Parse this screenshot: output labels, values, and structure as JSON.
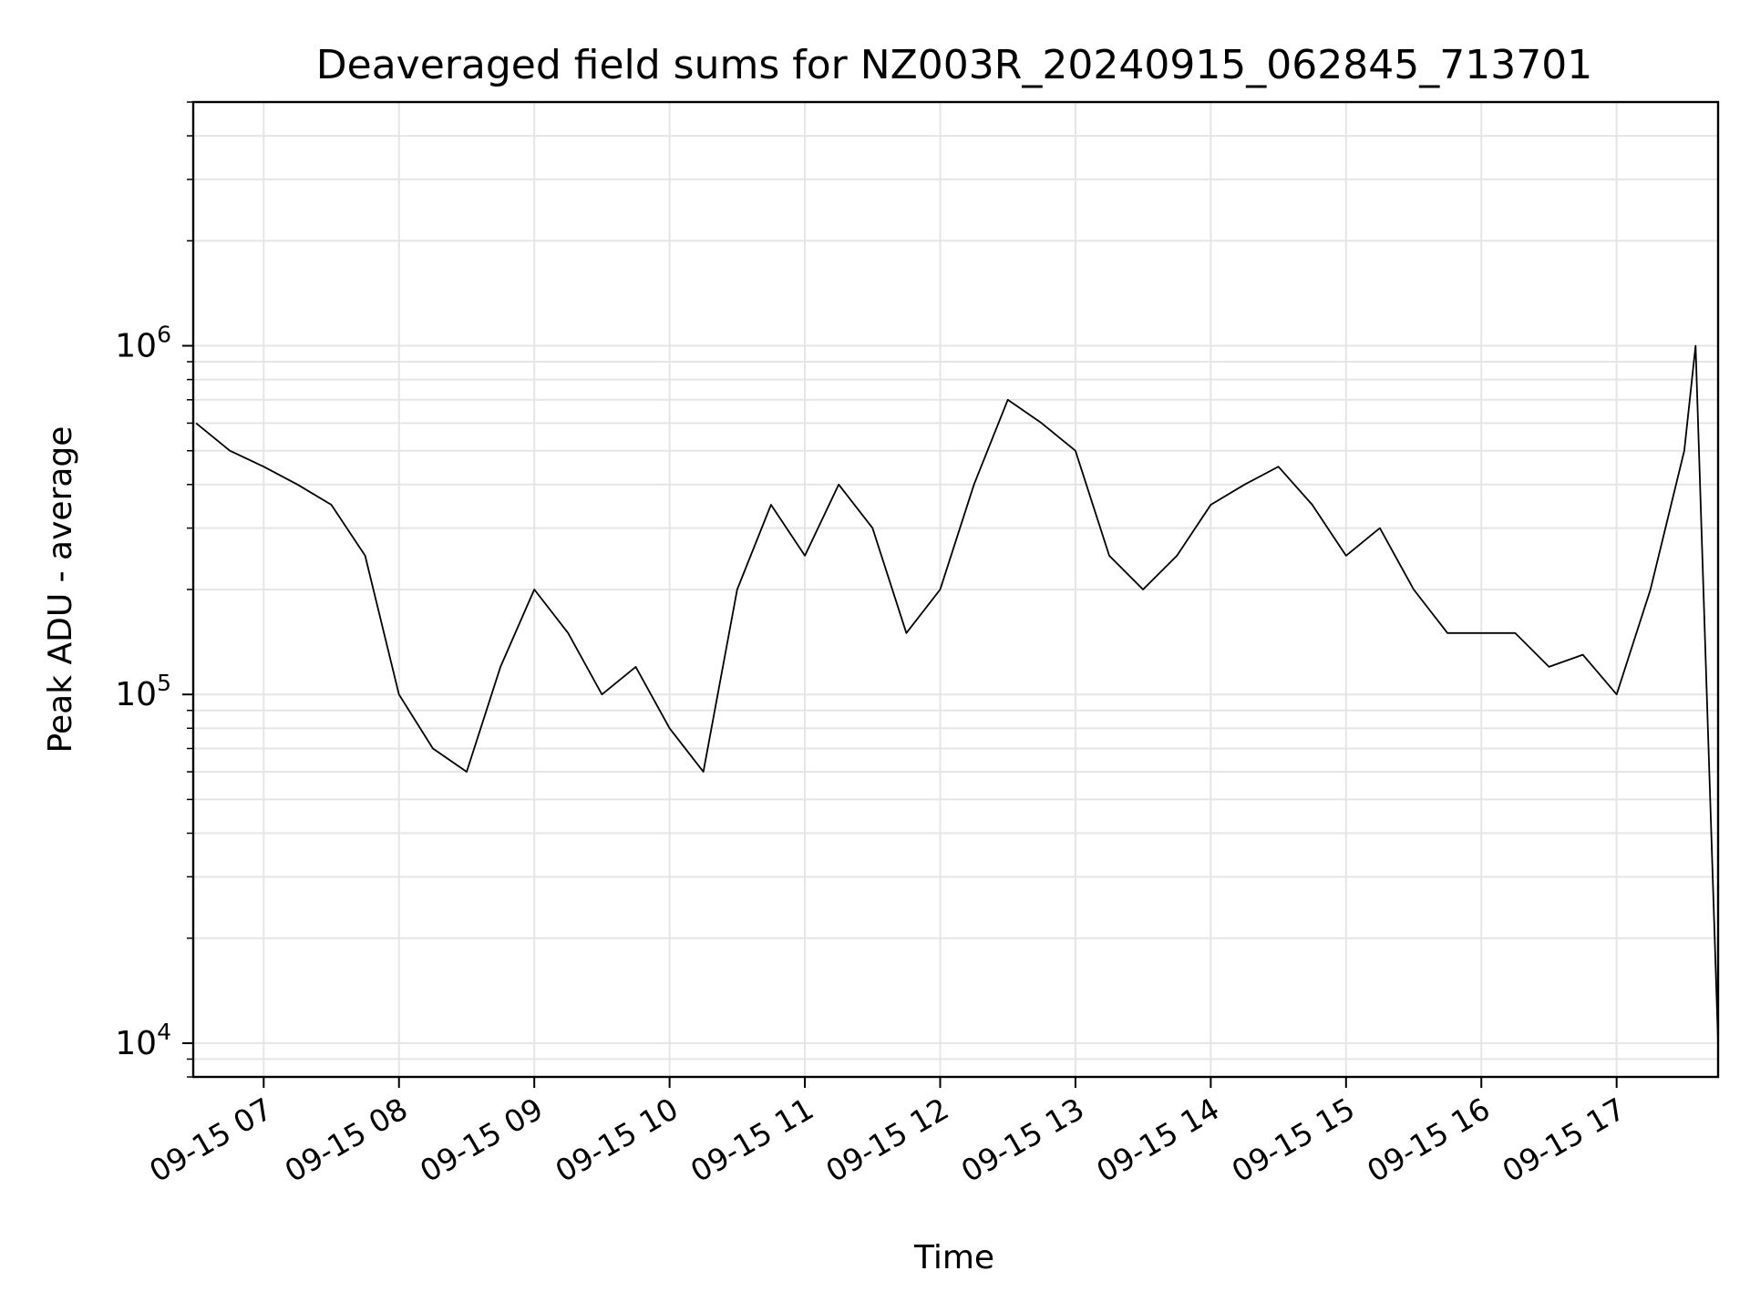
{
  "chart_data": {
    "type": "line",
    "title": "Deaveraged field sums for NZ003R_20240915_062845_713701",
    "xlabel": "Time",
    "ylabel": "Peak ADU - average",
    "yscale": "log",
    "xlim": [
      "2024-09-15T06:28:45",
      "2024-09-15T17:45:00"
    ],
    "ylim": [
      8000,
      5000000
    ],
    "grid": true,
    "line_color": "#000000",
    "grid_color": "#e5e5e5",
    "x_ticks": [
      {
        "value": "2024-09-15T07:00:00",
        "label": "09-15 07"
      },
      {
        "value": "2024-09-15T08:00:00",
        "label": "09-15 08"
      },
      {
        "value": "2024-09-15T09:00:00",
        "label": "09-15 09"
      },
      {
        "value": "2024-09-15T10:00:00",
        "label": "09-15 10"
      },
      {
        "value": "2024-09-15T11:00:00",
        "label": "09-15 11"
      },
      {
        "value": "2024-09-15T12:00:00",
        "label": "09-15 12"
      },
      {
        "value": "2024-09-15T13:00:00",
        "label": "09-15 13"
      },
      {
        "value": "2024-09-15T14:00:00",
        "label": "09-15 14"
      },
      {
        "value": "2024-09-15T15:00:00",
        "label": "09-15 15"
      },
      {
        "value": "2024-09-15T16:00:00",
        "label": "09-15 16"
      },
      {
        "value": "2024-09-15T17:00:00",
        "label": "09-15 17"
      }
    ],
    "y_ticks": [
      {
        "value": 10000,
        "base": "10",
        "exp": "4"
      },
      {
        "value": 100000,
        "base": "10",
        "exp": "5"
      },
      {
        "value": 1000000,
        "base": "10",
        "exp": "6"
      }
    ],
    "series": [
      {
        "x": [
          "2024-09-15T06:30:00",
          "2024-09-15T06:45:00",
          "2024-09-15T07:00:00",
          "2024-09-15T07:15:00",
          "2024-09-15T07:30:00",
          "2024-09-15T07:45:00",
          "2024-09-15T08:00:00",
          "2024-09-15T08:15:00",
          "2024-09-15T08:30:00",
          "2024-09-15T08:45:00",
          "2024-09-15T09:00:00",
          "2024-09-15T09:15:00",
          "2024-09-15T09:30:00",
          "2024-09-15T09:45:00",
          "2024-09-15T10:00:00",
          "2024-09-15T10:15:00",
          "2024-09-15T10:30:00",
          "2024-09-15T10:45:00",
          "2024-09-15T11:00:00",
          "2024-09-15T11:15:00",
          "2024-09-15T11:30:00",
          "2024-09-15T11:45:00",
          "2024-09-15T12:00:00",
          "2024-09-15T12:15:00",
          "2024-09-15T12:30:00",
          "2024-09-15T12:45:00",
          "2024-09-15T13:00:00",
          "2024-09-15T13:15:00",
          "2024-09-15T13:30:00",
          "2024-09-15T13:45:00",
          "2024-09-15T14:00:00",
          "2024-09-15T14:15:00",
          "2024-09-15T14:30:00",
          "2024-09-15T14:45:00",
          "2024-09-15T15:00:00",
          "2024-09-15T15:15:00",
          "2024-09-15T15:30:00",
          "2024-09-15T15:45:00",
          "2024-09-15T16:00:00",
          "2024-09-15T16:15:00",
          "2024-09-15T16:30:00",
          "2024-09-15T16:45:00",
          "2024-09-15T17:00:00",
          "2024-09-15T17:15:00",
          "2024-09-15T17:30:00",
          "2024-09-15T17:35:00",
          "2024-09-15T17:40:00",
          "2024-09-15T17:45:00"
        ],
        "y": [
          600000,
          500000,
          450000,
          400000,
          350000,
          250000,
          100000,
          70000,
          60000,
          120000,
          200000,
          150000,
          100000,
          120000,
          80000,
          60000,
          200000,
          350000,
          250000,
          400000,
          300000,
          150000,
          200000,
          400000,
          700000,
          600000,
          500000,
          250000,
          200000,
          250000,
          350000,
          400000,
          450000,
          350000,
          250000,
          300000,
          200000,
          150000,
          150000,
          150000,
          120000,
          130000,
          100000,
          200000,
          500000,
          1000000,
          100000,
          10000
        ]
      }
    ]
  }
}
